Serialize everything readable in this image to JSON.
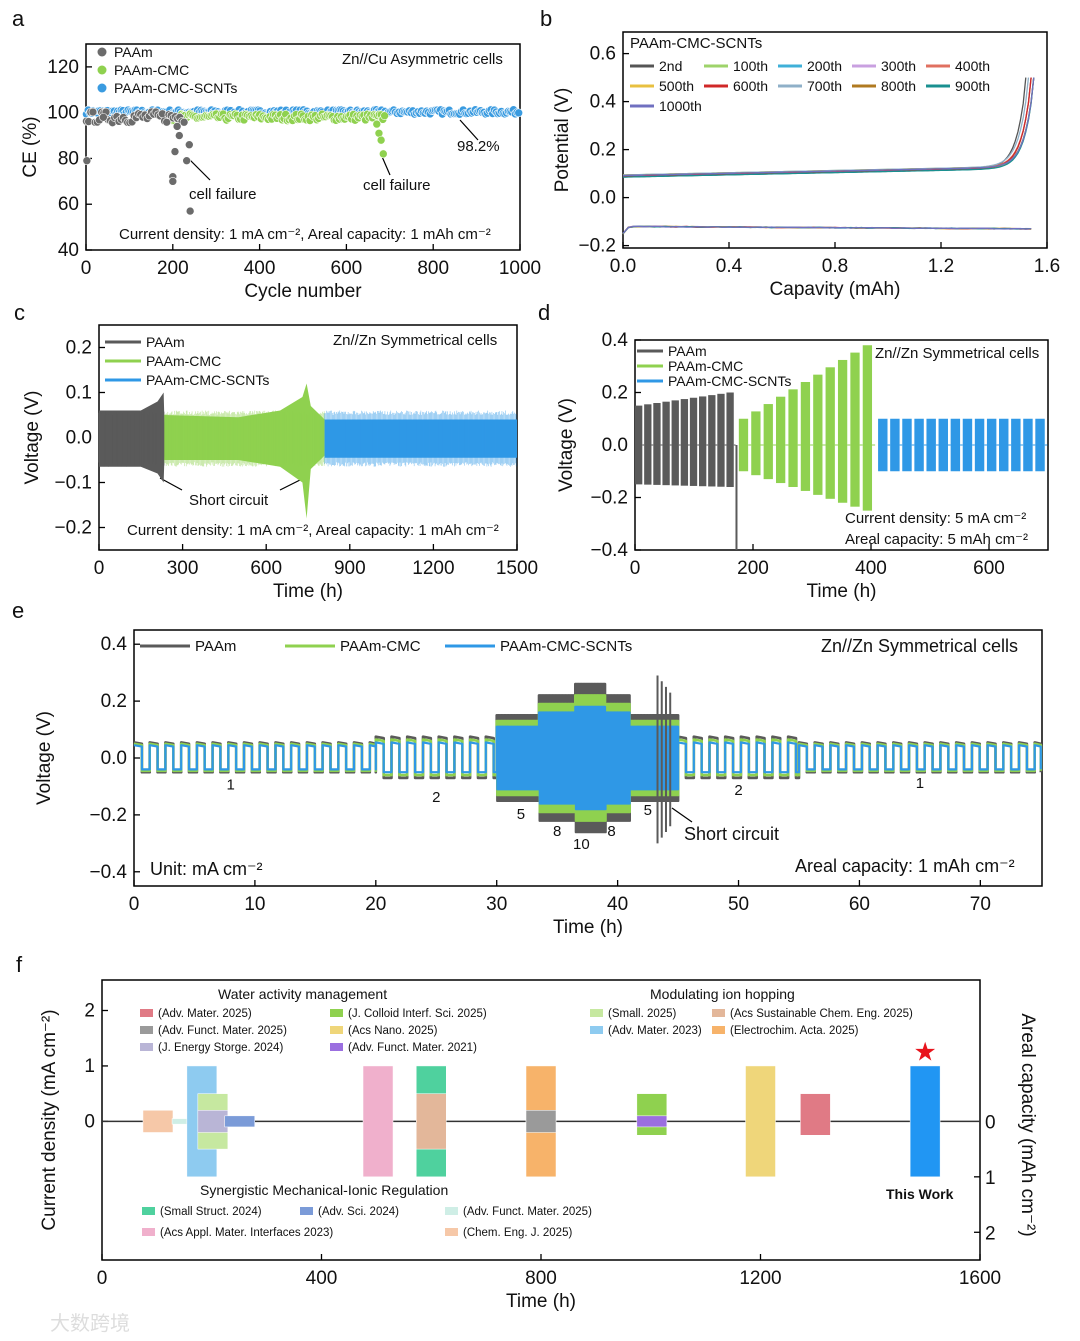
{
  "panel_labels": [
    "a",
    "b",
    "c",
    "d",
    "e",
    "f"
  ],
  "watermark": "大数跨境",
  "chart_data": [
    {
      "id": "a",
      "type": "scatter",
      "xlabel": "Cycle number",
      "ylabel": "CE (%)",
      "xlim": [
        0,
        1000
      ],
      "ylim": [
        40,
        130
      ],
      "xticks": [
        0,
        200,
        400,
        600,
        800,
        1000
      ],
      "yticks": [
        40,
        60,
        80,
        100,
        120
      ],
      "title": "Zn//Cu Asymmetric cells",
      "series": [
        {
          "name": "PAAm",
          "color": "#6b6b6b",
          "x_range": [
            1,
            230
          ],
          "step": 5,
          "mean": 98,
          "spread": 5,
          "extra_points": [
            [
              2,
              79
            ],
            [
              40,
              98
            ],
            [
              200,
              72
            ],
            [
              200,
              70
            ],
            [
              205,
              83
            ],
            [
              210,
              94
            ],
            [
              215,
              90
            ],
            [
              232,
              79
            ],
            [
              240,
              57
            ],
            [
              238,
              86
            ]
          ]
        },
        {
          "name": "PAAm-CMC",
          "color": "#8fd14f",
          "x_range": [
            200,
            690
          ],
          "step": 4,
          "mean": 98,
          "spread": 3,
          "extra_points": [
            [
              670,
              95
            ],
            [
              675,
              91
            ],
            [
              680,
              88
            ],
            [
              685,
              82
            ]
          ]
        },
        {
          "name": "PAAm-CMC-SCNTs",
          "color": "#3a9be0",
          "x_range": [
            1,
            1000
          ],
          "step": 4,
          "mean": 100.3,
          "spread": 2,
          "extra_points": []
        }
      ],
      "annotations": [
        "cell failure",
        "cell failure",
        "98.2%",
        "Current density: 1 mA cm⁻², Areal capacity: 1 mAh cm⁻²"
      ]
    },
    {
      "id": "b",
      "type": "line",
      "xlabel": "Capavity (mAh)",
      "ylabel": "Potential (V)",
      "xlim": [
        0,
        1.6
      ],
      "ylim": [
        -0.21,
        0.69
      ],
      "xticks": [
        0.0,
        0.4,
        0.8,
        1.2,
        1.6
      ],
      "yticks": [
        -0.2,
        0.0,
        0.2,
        0.4,
        0.6
      ],
      "title": "PAAm-CMC-SCNTs",
      "series": [
        {
          "name": "2nd",
          "color": "#555555",
          "capacity": 1.52
        },
        {
          "name": "100th",
          "color": "#9ed36a",
          "capacity": 1.55
        },
        {
          "name": "200th",
          "color": "#3fb0d8",
          "capacity": 1.54
        },
        {
          "name": "300th",
          "color": "#c9a0e0",
          "capacity": 1.55
        },
        {
          "name": "400th",
          "color": "#e07060",
          "capacity": 1.54
        },
        {
          "name": "500th",
          "color": "#e8c040",
          "capacity": 1.55
        },
        {
          "name": "600th",
          "color": "#d02828",
          "capacity": 1.54
        },
        {
          "name": "700th",
          "color": "#8fb0c8",
          "capacity": 1.53
        },
        {
          "name": "800th",
          "color": "#b07a20",
          "capacity": 1.55
        },
        {
          "name": "900th",
          "color": "#1a9090",
          "capacity": 1.55
        },
        {
          "name": "1000th",
          "color": "#7070c0",
          "capacity": 1.55
        }
      ],
      "charge_plateau_V": [
        0.09,
        0.13
      ],
      "discharge_plateau_V": [
        -0.12,
        -0.13
      ],
      "cutoff_V": 0.5
    },
    {
      "id": "c",
      "type": "area",
      "xlabel": "Time (h)",
      "ylabel": "Voltage (V)",
      "xlim": [
        0,
        1500
      ],
      "ylim": [
        -0.25,
        0.25
      ],
      "xticks": [
        0,
        300,
        600,
        900,
        1200,
        1500
      ],
      "yticks": [
        -0.2,
        -0.1,
        0.0,
        0.1,
        0.2
      ],
      "title": "Zn//Zn Symmetrical cells",
      "series": [
        {
          "name": "PAAm",
          "color": "#5a5a5a",
          "envelope": [
            [
              0,
              0.06,
              -0.065
            ],
            [
              150,
              0.06,
              -0.065
            ],
            [
              210,
              0.08,
              -0.08
            ],
            [
              232,
              0.1,
              -0.1
            ],
            [
              235,
              0.03,
              -0.04
            ]
          ]
        },
        {
          "name": "PAAm-CMC",
          "color": "#8fd14f",
          "envelope": [
            [
              235,
              0.05,
              -0.05
            ],
            [
              500,
              0.045,
              -0.05
            ],
            [
              650,
              0.06,
              -0.065
            ],
            [
              730,
              0.09,
              -0.1
            ],
            [
              745,
              0.12,
              -0.18
            ],
            [
              760,
              0.07,
              -0.07
            ],
            [
              810,
              0.04,
              -0.04
            ]
          ]
        },
        {
          "name": "PAAm-CMC-SCNTs",
          "color": "#2f98e6",
          "envelope": [
            [
              810,
              0.04,
              -0.045
            ],
            [
              1500,
              0.04,
              -0.045
            ]
          ]
        }
      ],
      "annotations": [
        "Short circuit",
        "Current density: 1 mA cm⁻², Areal capacity: 1 mAh cm⁻²"
      ]
    },
    {
      "id": "d",
      "type": "area",
      "xlabel": "Time (h)",
      "ylabel": "Voltage (V)",
      "xlim": [
        0,
        700
      ],
      "ylim": [
        -0.4,
        0.4
      ],
      "xticks": [
        0,
        200,
        400,
        600
      ],
      "yticks": [
        -0.4,
        -0.2,
        0.0,
        0.2,
        0.4
      ],
      "title": "Zn//Zn Symmetrical cells",
      "series": [
        {
          "name": "PAAm",
          "color": "#5a5a5a",
          "start": 0,
          "end": 175,
          "period": 15.5,
          "fill_fraction": 0.8,
          "top": [
            0.15,
            0.2
          ],
          "bottom": [
            -0.15,
            -0.16
          ],
          "spike": [
            172,
            -0.4
          ]
        },
        {
          "name": "PAAm-CMC",
          "color": "#8fd14f",
          "start": 176,
          "end": 410,
          "period": 21,
          "fill_fraction": 0.75,
          "top": [
            0.1,
            0.38
          ],
          "bottom": [
            -0.1,
            -0.25
          ],
          "spike": null
        },
        {
          "name": "PAAm-CMC-SCNTs",
          "color": "#2f98e6",
          "start": 412,
          "end": 700,
          "period": 20.5,
          "fill_fraction": 0.78,
          "top": [
            0.1,
            0.1
          ],
          "bottom": [
            -0.1,
            -0.1
          ],
          "spike": null
        }
      ],
      "annotations": [
        "Current density: 5 mA cm⁻²",
        "Areal capacity: 5 mAh cm⁻²"
      ]
    },
    {
      "id": "e",
      "type": "line",
      "xlabel": "Time (h)",
      "ylabel": "Voltage (V)",
      "xlim": [
        0,
        75.1
      ],
      "ylim": [
        -0.45,
        0.45
      ],
      "xticks": [
        0,
        10,
        20,
        30,
        40,
        50,
        60,
        70
      ],
      "yticks": [
        -0.4,
        -0.2,
        0.0,
        0.2,
        0.4
      ],
      "title": "Zn//Zn Symmetrical cells",
      "segments": [
        [
          0,
          20,
          1
        ],
        [
          20,
          30,
          2
        ],
        [
          30,
          33.5,
          5
        ],
        [
          33.5,
          36.5,
          8
        ],
        [
          36.5,
          39,
          10
        ],
        [
          39,
          41,
          8
        ],
        [
          41,
          45,
          5
        ],
        [
          45,
          55,
          2
        ],
        [
          55,
          75,
          1
        ]
      ],
      "series": [
        {
          "name": "PAAm",
          "color": "#5a5a5a",
          "amplitude_V": {
            "1": 0.05,
            "2": 0.07,
            "5": 0.15,
            "8": 0.22,
            "10": 0.26
          }
        },
        {
          "name": "PAAm-CMC",
          "color": "#8fd14f",
          "amplitude_V": {
            "1": 0.045,
            "2": 0.06,
            "5": 0.13,
            "8": 0.19,
            "10": 0.22
          }
        },
        {
          "name": "PAAm-CMC-SCNTs",
          "color": "#2f98e6",
          "amplitude_V": {
            "1": 0.04,
            "2": 0.05,
            "5": 0.11,
            "8": 0.16,
            "10": 0.18
          }
        }
      ],
      "rate_labels": [
        {
          "t": 8,
          "v": -0.11,
          "text": "1"
        },
        {
          "t": 25,
          "v": -0.155,
          "text": "2"
        },
        {
          "t": 32,
          "v": -0.215,
          "text": "5"
        },
        {
          "t": 35,
          "v": -0.275,
          "text": "8"
        },
        {
          "t": 37,
          "v": -0.32,
          "text": "10"
        },
        {
          "t": 39.5,
          "v": -0.275,
          "text": "8"
        },
        {
          "t": 42.5,
          "v": -0.2,
          "text": "5"
        },
        {
          "t": 50,
          "v": -0.13,
          "text": "2"
        },
        {
          "t": 65,
          "v": -0.105,
          "text": "1"
        }
      ],
      "annotations": [
        "Short circuit",
        "Unit: mA cm⁻²",
        "Areal capacity: 1 mAh cm⁻²"
      ]
    },
    {
      "id": "f",
      "type": "bar",
      "xlabel": "Time (h)",
      "ylabel": "Current density (mA cm⁻²)",
      "y2label": "Areal capacity (mAh cm⁻²)",
      "xlim": [
        0,
        1600
      ],
      "ylim": [
        -2.5,
        2.55
      ],
      "xticks": [
        0,
        400,
        800,
        1200,
        1600
      ],
      "yticks": [
        0,
        1,
        2
      ],
      "y2ticks": [
        0,
        1,
        2
      ],
      "groups": [
        {
          "title": "Water activity management",
          "items": [
            {
              "label": "(Adv. Mater. 2025)",
              "color": "#e07a85"
            },
            {
              "label": "(J. Colloid Interf. Sci. 2025)",
              "color": "#8fd14f"
            },
            {
              "label": "(Adv. Funct. Mater. 2025)",
              "color": "#9a9a9a"
            },
            {
              "label": "(Acs Nano. 2025)",
              "color": "#efd67a"
            },
            {
              "label": "(J. Energy Storge. 2024)",
              "color": "#b9b5d6"
            },
            {
              "label": "(Adv. Funct. Mater. 2021)",
              "color": "#9b6fe0"
            }
          ]
        },
        {
          "title": "Modulating ion hopping",
          "items": [
            {
              "label": "(Small. 2025)",
              "color": "#c6e8a0"
            },
            {
              "label": "(Acs Sustainable Chem. Eng. 2025)",
              "color": "#e3b79a"
            },
            {
              "label": "(Adv. Mater. 2023)",
              "color": "#8ecbf0"
            },
            {
              "label": "(Electrochim. Acta. 2025)",
              "color": "#f7b36a"
            }
          ]
        },
        {
          "title": "Synergistic Mechanical-Ionic Regulation",
          "items": [
            {
              "label": "(Small Struct. 2024)",
              "color": "#4fd19e"
            },
            {
              "label": "(Adv. Sci. 2024)",
              "color": "#7b9bd8"
            },
            {
              "label": "(Adv. Funct. Mater. 2025)",
              "color": "#cfeee6"
            },
            {
              "label": "(Acs Appl. Mater. Interfaces 2023)",
              "color": "#f0b0cc"
            },
            {
              "label": "(Chem. Eng. J. 2025)",
              "color": "#f6c8a8"
            }
          ]
        }
      ],
      "bars": [
        {
          "ref": "(Chem. Eng. J. 2025)",
          "time_h": 102,
          "current_density": 0.2,
          "areal_capacity": 0.2,
          "color": "#f6c8a8"
        },
        {
          "ref": "(Adv. Funct. Mater. 2025)",
          "time_h": 155,
          "current_density": 0.05,
          "areal_capacity": 0.05,
          "color": "#cfeee6"
        },
        {
          "ref": "(Adv. Mater. 2023)",
          "time_h": 182,
          "current_density": 1,
          "areal_capacity": 1,
          "color": "#8ecbf0"
        },
        {
          "ref": "(Small. 2025)",
          "time_h": 202,
          "current_density": 0.5,
          "areal_capacity": 0.5,
          "color": "#c6e8a0"
        },
        {
          "ref": "(J. Energy Storge. 2024)",
          "time_h": 202,
          "current_density": 0.2,
          "areal_capacity": 0.2,
          "color": "#b9b5d6"
        },
        {
          "ref": "(Adv. Sci. 2024)",
          "time_h": 251,
          "current_density": 0.1,
          "areal_capacity": 0.1,
          "color": "#7b9bd8"
        },
        {
          "ref": "(Acs Appl. Mater. Interfaces 2023)",
          "time_h": 503,
          "current_density": 1,
          "areal_capacity": 1,
          "color": "#f0b0cc"
        },
        {
          "ref": "(Small Struct. 2024)",
          "time_h": 600,
          "current_density": 1,
          "areal_capacity": 1,
          "color": "#4fd19e"
        },
        {
          "ref": "(Acs Sustainable Chem. Eng. 2025)",
          "time_h": 600,
          "current_density": 0.5,
          "areal_capacity": 0.5,
          "color": "#e3b79a"
        },
        {
          "ref": "(Electrochim. Acta. 2025)",
          "time_h": 800,
          "current_density": 1,
          "areal_capacity": 1,
          "color": "#f7b36a"
        },
        {
          "ref": "(Adv. Funct. Mater. 2025)",
          "time_h": 800,
          "current_density": 0.2,
          "areal_capacity": 0.2,
          "color": "#9a9a9a"
        },
        {
          "ref": "(J. Colloid Interf. Sci. 2025)",
          "time_h": 1002,
          "current_density": 0.5,
          "areal_capacity": 0.25,
          "color": "#8fd14f"
        },
        {
          "ref": "(Adv. Funct. Mater. 2021)",
          "time_h": 1002,
          "current_density": 0.1,
          "areal_capacity": 0.1,
          "color": "#9b6fe0"
        },
        {
          "ref": "(Acs Nano. 2025)",
          "time_h": 1200,
          "current_density": 1,
          "areal_capacity": 1,
          "color": "#efd67a"
        },
        {
          "ref": "(Adv. Mater. 2025)",
          "time_h": 1300,
          "current_density": 0.5,
          "areal_capacity": 0.25,
          "color": "#e07a85"
        },
        {
          "ref": "This Work",
          "time_h": 1500,
          "current_density": 1,
          "areal_capacity": 1,
          "color": "#2196f3"
        }
      ],
      "this_work_label": "This Work"
    }
  ]
}
